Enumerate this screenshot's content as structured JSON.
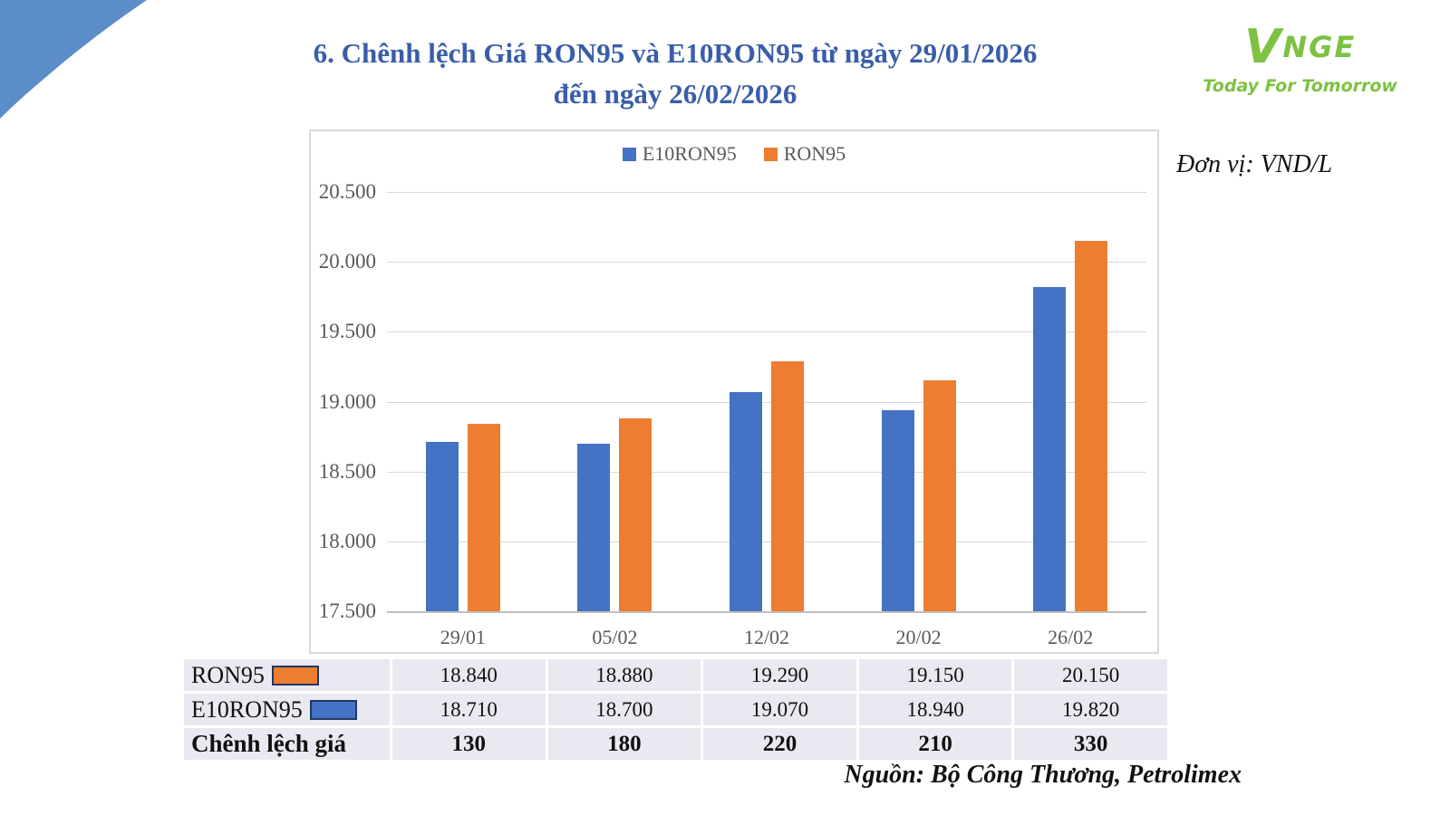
{
  "header": {
    "title_line1": "6. Chênh lệch Giá RON95 và E10RON95 từ ngày 29/01/2026",
    "title_line2": "đến ngày 26/02/2026",
    "unit_label": "Đơn vị: VND/L"
  },
  "logo": {
    "v": "V",
    "rest": "NGE",
    "tagline": "Today For Tomorrow",
    "color": "#7DC242"
  },
  "chart_data": {
    "type": "bar",
    "title": "",
    "categories": [
      "29/01",
      "05/02",
      "12/02",
      "20/02",
      "26/02"
    ],
    "series": [
      {
        "name": "E10RON95",
        "color": "#4472C4",
        "values": [
          18710,
          18700,
          19070,
          18940,
          19820
        ]
      },
      {
        "name": "RON95",
        "color": "#ED7D31",
        "values": [
          18840,
          18880,
          19290,
          19150,
          20150
        ]
      }
    ],
    "ylim": [
      17500,
      20500
    ],
    "ytick_step": 500,
    "ytick_labels": [
      "20.500",
      "20.000",
      "19.500",
      "19.000",
      "18.500",
      "18.000",
      "17.500"
    ],
    "grid": true,
    "legend_position": "top-center",
    "unit": "VND/L"
  },
  "table": {
    "rows": [
      {
        "label": "RON95",
        "swatch": "#ED7D31",
        "bold": false,
        "values": [
          "18.840",
          "18.880",
          "19.290",
          "19.150",
          "20.150"
        ]
      },
      {
        "label": "E10RON95",
        "swatch": "#4472C4",
        "bold": false,
        "values": [
          "18.710",
          "18.700",
          "19.070",
          "18.940",
          "19.820"
        ]
      },
      {
        "label": "Chênh lệch giá",
        "swatch": null,
        "bold": true,
        "values": [
          "130",
          "180",
          "220",
          "210",
          "330"
        ]
      }
    ]
  },
  "footer": {
    "source": "Nguồn: Bộ Công Thương, Petrolimex"
  },
  "colors": {
    "series_blue": "#4472C4",
    "series_orange": "#ED7D31",
    "corner_blue": "#5B8EC9",
    "title_blue": "#3A5DA9",
    "logo_green": "#7DC242",
    "table_bg": "#E9E9F1",
    "gridline": "#D9D9D9",
    "axis_text": "#595959"
  }
}
